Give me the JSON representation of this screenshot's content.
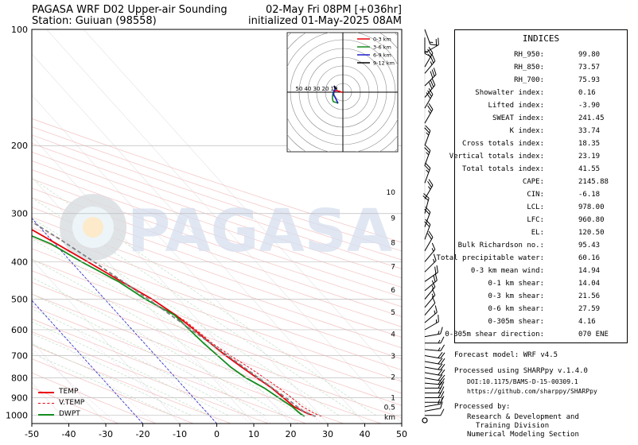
{
  "header": {
    "title_left_1": "PAGASA WRF D02 Upper-air Sounding",
    "title_left_2": "Station: Guiuan (98558)",
    "title_right_1": "02-May Fri 08PM [+036hr]",
    "title_right_2": "initialized 01-May-2025 08AM"
  },
  "chart_data": {
    "type": "skew-t log-p sounding",
    "x_axis": {
      "min": -50,
      "max": 50,
      "ticks": [
        -50,
        -40,
        -30,
        -20,
        -10,
        0,
        10,
        20,
        30,
        40,
        50
      ]
    },
    "y_axis": {
      "scale": "log",
      "min": 100,
      "max": 1050,
      "ticks": [
        100,
        200,
        300,
        400,
        500,
        600,
        700,
        800,
        900,
        1000
      ]
    },
    "height_km_labels": [
      {
        "p": 264,
        "label": "10"
      },
      {
        "p": 308,
        "label": "9"
      },
      {
        "p": 357,
        "label": "8"
      },
      {
        "p": 412,
        "label": "7"
      },
      {
        "p": 473,
        "label": "6"
      },
      {
        "p": 541,
        "label": "5"
      },
      {
        "p": 616,
        "label": "4"
      },
      {
        "p": 701,
        "label": "3"
      },
      {
        "p": 795,
        "label": "2"
      },
      {
        "p": 900,
        "label": "1"
      },
      {
        "p": 953,
        "label": "0.5"
      },
      {
        "p": 1010,
        "label": "km"
      }
    ],
    "series": [
      {
        "name": "TEMP",
        "color": "#e8000b",
        "points": [
          [
            1005,
            28.5
          ],
          [
            990,
            27
          ],
          [
            950,
            25
          ],
          [
            900,
            24.3
          ],
          [
            850,
            23.5
          ],
          [
            800,
            22
          ],
          [
            750,
            20.5
          ],
          [
            700,
            19
          ],
          [
            650,
            17.8
          ],
          [
            600,
            16.8
          ],
          [
            550,
            15.3
          ],
          [
            500,
            12.8
          ],
          [
            450,
            8.8
          ],
          [
            400,
            4.5
          ],
          [
            350,
            -0.5
          ],
          [
            300,
            -6.5
          ],
          [
            275,
            -9.3
          ],
          [
            250,
            -13.3
          ],
          [
            225,
            -17.5
          ],
          [
            200,
            -22
          ],
          [
            175,
            -27.3
          ],
          [
            150,
            -32.5
          ],
          [
            140,
            -35
          ],
          [
            130,
            -37.5
          ],
          [
            125,
            -39.5
          ],
          [
            120,
            -42.5
          ],
          [
            115,
            -44
          ],
          [
            110,
            -47
          ],
          [
            105,
            -50
          ],
          [
            100,
            -53
          ]
        ]
      },
      {
        "name": "V.TEMP",
        "color": "#e8000b",
        "dashed": true,
        "points": [
          [
            1005,
            30
          ],
          [
            990,
            29
          ],
          [
            950,
            27.3
          ],
          [
            900,
            26.5
          ],
          [
            850,
            25.5
          ],
          [
            800,
            24
          ],
          [
            750,
            22.3
          ],
          [
            700,
            20.3
          ],
          [
            650,
            18.3
          ],
          [
            600,
            17.3
          ],
          [
            570,
            16.5
          ],
          [
            550,
            15.3
          ],
          [
            500,
            12.9
          ],
          [
            450,
            8.9
          ],
          [
            400,
            4.6
          ],
          [
            350,
            -0.4
          ],
          [
            300,
            -6.4
          ]
        ]
      },
      {
        "name": "DWPT",
        "color": "#148c1e",
        "points": [
          [
            1005,
            25.5
          ],
          [
            990,
            25
          ],
          [
            950,
            24.5
          ],
          [
            900,
            23
          ],
          [
            850,
            21.5
          ],
          [
            800,
            19
          ],
          [
            750,
            17.5
          ],
          [
            700,
            16.8
          ],
          [
            650,
            16
          ],
          [
            600,
            15.5
          ],
          [
            550,
            15
          ],
          [
            500,
            11
          ],
          [
            450,
            8
          ],
          [
            400,
            2.8
          ],
          [
            360,
            -1
          ],
          [
            320,
            -9
          ],
          [
            300,
            -11
          ],
          [
            280,
            -20
          ],
          [
            265,
            -25.5
          ],
          [
            250,
            -28.5
          ],
          [
            225,
            -33.5
          ],
          [
            200,
            -39
          ],
          [
            185,
            -42.5
          ],
          [
            170,
            -44
          ],
          [
            160,
            -45.5
          ],
          [
            150,
            -48
          ],
          [
            140,
            -51
          ],
          [
            130,
            -54.5
          ],
          [
            120,
            -59
          ],
          [
            110,
            -61.5
          ],
          [
            100,
            -63
          ]
        ]
      },
      {
        "name": "parcel",
        "color": "#808080",
        "dashed": true,
        "points": [
          [
            1005,
            28.5
          ],
          [
            978,
            26.5
          ],
          [
            960,
            26
          ],
          [
            900,
            25
          ],
          [
            850,
            23.7
          ],
          [
            800,
            22.4
          ],
          [
            750,
            21
          ],
          [
            700,
            19.5
          ],
          [
            650,
            17.8
          ],
          [
            600,
            16
          ],
          [
            550,
            14
          ],
          [
            500,
            11.8
          ],
          [
            450,
            9.2
          ],
          [
            400,
            6.2
          ],
          [
            350,
            2.5
          ],
          [
            300,
            -2.4
          ],
          [
            250,
            -9
          ],
          [
            200,
            -18.5
          ],
          [
            175,
            -25
          ],
          [
            150,
            -32.5
          ],
          [
            125,
            -42
          ],
          [
            110,
            -48.5
          ],
          [
            100,
            -53
          ]
        ]
      }
    ],
    "legend": {
      "placement": "bottom-left",
      "entries": [
        "TEMP",
        "V.TEMP",
        "DWPT"
      ]
    },
    "hodograph": {
      "rings": [
        10,
        20,
        30,
        40,
        50
      ],
      "ring_labels": [
        "50",
        "40",
        "30",
        "20",
        "10"
      ],
      "legend": [
        {
          "name": "0-3 km",
          "color": "#e8000b"
        },
        {
          "name": "3-6 km",
          "color": "#148c1e"
        },
        {
          "name": "6-9 km",
          "color": "#1c1ccc"
        },
        {
          "name": "9-12 km",
          "color": "#000000"
        }
      ]
    },
    "wind_barbs": [
      {
        "p": 1000,
        "spd": 10,
        "dir": 90
      },
      {
        "p": 975,
        "spd": 10,
        "dir": 80
      },
      {
        "p": 950,
        "spd": 15,
        "dir": 80
      },
      {
        "p": 925,
        "spd": 15,
        "dir": 90
      },
      {
        "p": 900,
        "spd": 20,
        "dir": 90
      },
      {
        "p": 875,
        "spd": 20,
        "dir": 90
      },
      {
        "p": 850,
        "spd": 20,
        "dir": 90
      },
      {
        "p": 825,
        "spd": 20,
        "dir": 95
      },
      {
        "p": 800,
        "spd": 20,
        "dir": 100
      },
      {
        "p": 775,
        "spd": 20,
        "dir": 100
      },
      {
        "p": 750,
        "spd": 20,
        "dir": 100
      },
      {
        "p": 725,
        "spd": 20,
        "dir": 100
      },
      {
        "p": 700,
        "spd": 20,
        "dir": 100
      },
      {
        "p": 675,
        "spd": 15,
        "dir": 95
      },
      {
        "p": 650,
        "spd": 15,
        "dir": 90
      },
      {
        "p": 625,
        "spd": 15,
        "dir": 80
      },
      {
        "p": 600,
        "spd": 15,
        "dir": 60
      },
      {
        "p": 575,
        "spd": 15,
        "dir": 50
      },
      {
        "p": 550,
        "spd": 10,
        "dir": 40
      },
      {
        "p": 525,
        "spd": 15,
        "dir": 40
      },
      {
        "p": 500,
        "spd": 15,
        "dir": 40
      },
      {
        "p": 475,
        "spd": 20,
        "dir": 50
      },
      {
        "p": 450,
        "spd": 20,
        "dir": 55
      },
      {
        "p": 425,
        "spd": 15,
        "dir": 45
      },
      {
        "p": 400,
        "spd": 15,
        "dir": 40
      },
      {
        "p": 375,
        "spd": 20,
        "dir": 30
      },
      {
        "p": 350,
        "spd": 20,
        "dir": 20
      },
      {
        "p": 325,
        "spd": 20,
        "dir": 20
      },
      {
        "p": 300,
        "spd": 20,
        "dir": 15
      },
      {
        "p": 275,
        "spd": 25,
        "dir": 30
      },
      {
        "p": 250,
        "spd": 25,
        "dir": 20
      },
      {
        "p": 225,
        "spd": 25,
        "dir": 20
      },
      {
        "p": 200,
        "spd": 25,
        "dir": 20
      },
      {
        "p": 175,
        "spd": 25,
        "dir": 30
      },
      {
        "p": 160,
        "spd": 30,
        "dir": 30
      },
      {
        "p": 150,
        "spd": 30,
        "dir": 40
      },
      {
        "p": 140,
        "spd": 30,
        "dir": 45
      },
      {
        "p": 130,
        "spd": 25,
        "dir": 40
      },
      {
        "p": 125,
        "spd": 25,
        "dir": 30
      },
      {
        "p": 115,
        "spd": 20,
        "dir": 60
      },
      {
        "p": 105,
        "spd": 15,
        "dir": 180
      },
      {
        "p": 100,
        "spd": 15,
        "dir": 160
      }
    ],
    "bottom_calm_label": "0"
  },
  "indices": {
    "heading": "INDICES",
    "rows": [
      {
        "label": "RH_950:",
        "value": "99.80"
      },
      {
        "label": "RH_850:",
        "value": "73.57"
      },
      {
        "label": "RH_700:",
        "value": "75.93"
      },
      {
        "label": "Showalter index:",
        "value": "0.16"
      },
      {
        "label": "Lifted index:",
        "value": "-3.90"
      },
      {
        "label": "SWEAT index:",
        "value": "241.45"
      },
      {
        "label": "K index:",
        "value": "33.74"
      },
      {
        "label": "Cross totals index:",
        "value": "18.35"
      },
      {
        "label": "Vertical totals index:",
        "value": "23.19"
      },
      {
        "label": "Total totals index:",
        "value": "41.55"
      },
      {
        "label": "CAPE:",
        "value": "2145.88"
      },
      {
        "label": "CIN:",
        "value": "-6.18"
      },
      {
        "label": "LCL:",
        "value": "978.00"
      },
      {
        "label": "LFC:",
        "value": "960.80"
      },
      {
        "label": "EL:",
        "value": "120.50"
      },
      {
        "label": "Bulk Richardson no.:",
        "value": "95.43"
      },
      {
        "label": "Total precipitable water:",
        "value": "60.16"
      },
      {
        "label": "0-3 km mean wind:",
        "value": "14.94"
      },
      {
        "label": "0-1 km shear:",
        "value": "14.04"
      },
      {
        "label": "0-3 km shear:",
        "value": "21.56"
      },
      {
        "label": "0-6 km shear:",
        "value": "27.59"
      },
      {
        "label": "0-305m shear:",
        "value": "4.16"
      },
      {
        "label": "0-305m shear direction:",
        "value": "070 ENE"
      }
    ]
  },
  "footer": {
    "forecast_model": "Forecast model: WRF v4.5",
    "processed_using": "Processed using SHARPpy v.1.4.0",
    "doi": "DOI:10.1175/BAMS-D-15-00309.1",
    "url": "https://github.com/sharppy/SHARPpy",
    "processed_by": "Processed by:",
    "org_1": "Research & Development and",
    "org_2": "Training Division",
    "org_3": "Numerical Modeling Section"
  },
  "watermark": {
    "text": "PAGASA"
  }
}
